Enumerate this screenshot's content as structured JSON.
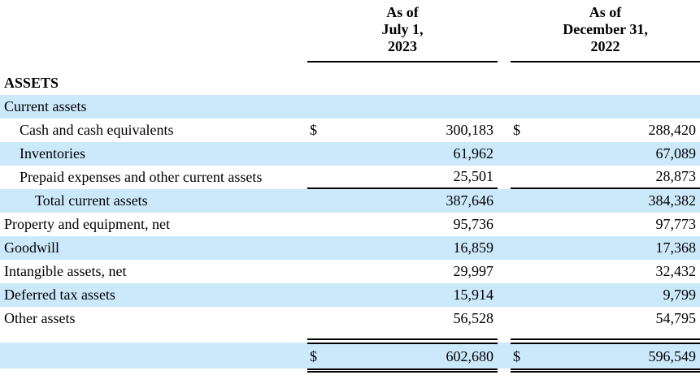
{
  "columns": [
    {
      "header": "As of\nJuly 1,\n2023"
    },
    {
      "header": "As of\nDecember 31,\n2022"
    }
  ],
  "rows": [
    {
      "label": "ASSETS",
      "bold": true,
      "shaded": false,
      "indent": 0,
      "cur1": "",
      "val1": "",
      "cur2": "",
      "val2": ""
    },
    {
      "label": "Current assets",
      "shaded": true,
      "indent": 0,
      "cur1": "",
      "val1": "",
      "cur2": "",
      "val2": ""
    },
    {
      "label": "Cash and cash equivalents",
      "indent": 1,
      "shaded": false,
      "cur1": "$",
      "val1": "300,183",
      "cur2": "$",
      "val2": "288,420"
    },
    {
      "label": "Inventories",
      "indent": 1,
      "shaded": true,
      "cur1": "",
      "val1": "61,962",
      "cur2": "",
      "val2": "67,089"
    },
    {
      "label": "Prepaid expenses and other current assets",
      "indent": 1,
      "shaded": false,
      "cur1": "",
      "val1": "25,501",
      "cur2": "",
      "val2": "28,873",
      "rule_below": "single"
    },
    {
      "label": "Total current assets",
      "indent": 2,
      "shaded": true,
      "cur1": "",
      "val1": "387,646",
      "cur2": "",
      "val2": "384,382"
    },
    {
      "label": "Property and equipment, net",
      "indent": 0,
      "shaded": false,
      "cur1": "",
      "val1": "95,736",
      "cur2": "",
      "val2": "97,773"
    },
    {
      "label": "Goodwill",
      "indent": 0,
      "shaded": true,
      "cur1": "",
      "val1": "16,859",
      "cur2": "",
      "val2": "17,368"
    },
    {
      "label": "Intangible assets, net",
      "indent": 0,
      "shaded": false,
      "cur1": "",
      "val1": "29,997",
      "cur2": "",
      "val2": "32,432"
    },
    {
      "label": "Deferred tax assets",
      "indent": 0,
      "shaded": true,
      "cur1": "",
      "val1": "15,914",
      "cur2": "",
      "val2": "9,799"
    },
    {
      "label": "Other assets",
      "indent": 0,
      "shaded": false,
      "cur1": "",
      "val1": "56,528",
      "cur2": "",
      "val2": "54,795",
      "rule_below": "offset-single"
    },
    {
      "label": "",
      "total": true,
      "shaded": true,
      "indent": 0,
      "cur1": "$",
      "val1": "602,680",
      "cur2": "$",
      "val2": "596,549"
    }
  ],
  "colors": {
    "shaded_row": "#cce9fb",
    "rule": "#000000",
    "text": "#000000",
    "background": "#ffffff"
  }
}
